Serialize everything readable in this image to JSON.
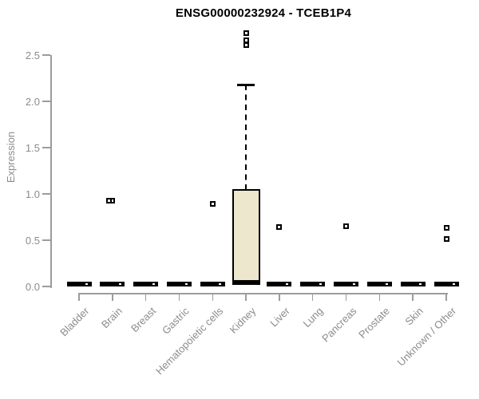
{
  "title": "ENSG00000232924 - TCEB1P4",
  "colors": {
    "background": "#ffffff",
    "box_fill": "#ece7cd",
    "box_border": "#000000",
    "axis_line": "#9c9c9c",
    "tick_text": "#8c8c8c",
    "title_text": "#000000"
  },
  "chart_data": {
    "type": "box",
    "title": "ENSG00000232924 - TCEB1P4",
    "xlabel": "",
    "ylabel": "Expression",
    "ylim": [
      0,
      2.8
    ],
    "grid": false,
    "legend": false,
    "yticks": [
      {
        "label": "0.0",
        "value": 0.0
      },
      {
        "label": "0.5",
        "value": 0.5
      },
      {
        "label": "1.0",
        "value": 1.0
      },
      {
        "label": "1.5",
        "value": 1.5
      },
      {
        "label": "2.0",
        "value": 2.0
      },
      {
        "label": "2.5",
        "value": 2.5
      }
    ],
    "categories": [
      "Bladder",
      "Brain",
      "Breast",
      "Gastric",
      "Hematopoietic cells",
      "Kidney",
      "Liver",
      "Lung",
      "Pancreas",
      "Prostate",
      "Skin",
      "Unknown / Other"
    ],
    "boxes": [
      {
        "category": "Bladder",
        "low": 0,
        "q1": 0,
        "median": 0,
        "q3": 0,
        "high": 0,
        "outliers": []
      },
      {
        "category": "Brain",
        "low": 0,
        "q1": 0,
        "median": 0,
        "q3": 0,
        "high": 0,
        "outliers": [
          0.93,
          0.93
        ]
      },
      {
        "category": "Breast",
        "low": 0,
        "q1": 0,
        "median": 0,
        "q3": 0,
        "high": 0,
        "outliers": []
      },
      {
        "category": "Gastric",
        "low": 0,
        "q1": 0,
        "median": 0,
        "q3": 0,
        "high": 0,
        "outliers": []
      },
      {
        "category": "Hematopoietic cells",
        "low": 0,
        "q1": 0,
        "median": 0,
        "q3": 0,
        "high": 0,
        "outliers": [
          0.89
        ]
      },
      {
        "category": "Kidney",
        "low": 0.02,
        "q1": 0.02,
        "median": 0.02,
        "q3": 1.05,
        "high": 2.18,
        "outliers": [
          2.74,
          2.66,
          2.61
        ]
      },
      {
        "category": "Liver",
        "low": 0,
        "q1": 0,
        "median": 0,
        "q3": 0,
        "high": 0,
        "outliers": [
          0.64
        ]
      },
      {
        "category": "Lung",
        "low": 0,
        "q1": 0,
        "median": 0,
        "q3": 0,
        "high": 0,
        "outliers": []
      },
      {
        "category": "Pancreas",
        "low": 0,
        "q1": 0,
        "median": 0,
        "q3": 0,
        "high": 0,
        "outliers": [
          0.65
        ]
      },
      {
        "category": "Prostate",
        "low": 0,
        "q1": 0,
        "median": 0,
        "q3": 0,
        "high": 0,
        "outliers": []
      },
      {
        "category": "Skin",
        "low": 0,
        "q1": 0,
        "median": 0,
        "q3": 0,
        "high": 0,
        "outliers": []
      },
      {
        "category": "Unknown / Other",
        "low": 0,
        "q1": 0,
        "median": 0,
        "q3": 0,
        "high": 0,
        "outliers": [
          0.63,
          0.51
        ]
      }
    ]
  }
}
